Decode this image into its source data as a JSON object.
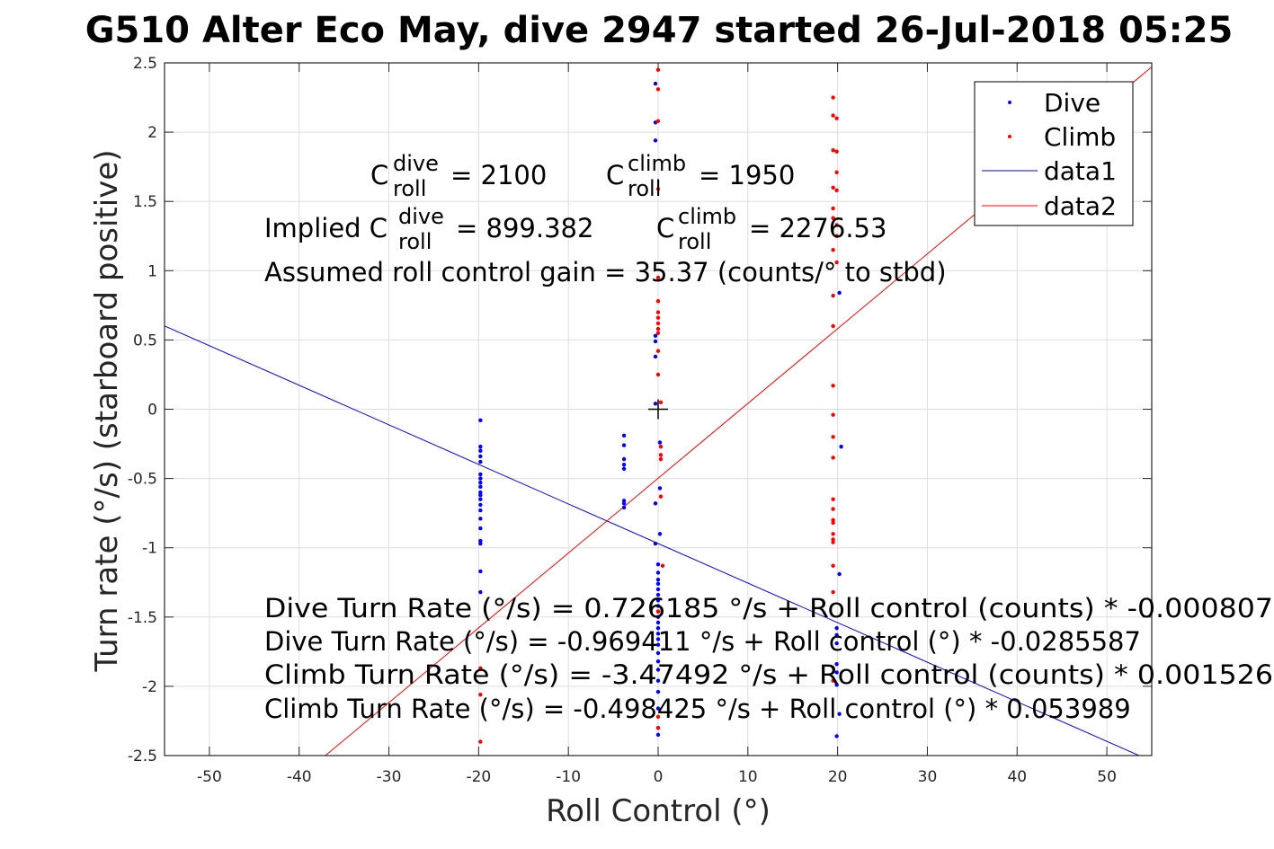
{
  "chart_data": {
    "type": "scatter",
    "title": "G510 Alter Eco May, dive 2947 started 26-Jul-2018 05:25",
    "xlabel": "Roll Control (°)",
    "ylabel": "Turn rate (°/s) (starboard positive)",
    "xlim": [
      -55,
      55
    ],
    "ylim": [
      -2.5,
      2.5
    ],
    "xticks": [
      -50,
      -40,
      -30,
      -20,
      -10,
      0,
      10,
      20,
      30,
      40,
      50
    ],
    "yticks": [
      -2.5,
      -2,
      -1.5,
      -1,
      -0.5,
      0,
      0.5,
      1,
      1.5,
      2,
      2.5
    ],
    "grid": true,
    "legend_position": "top-right",
    "series": [
      {
        "name": "Dive",
        "kind": "points",
        "color": "#0000ff",
        "points": [
          [
            -19.8,
            -0.08
          ],
          [
            -19.8,
            -0.27
          ],
          [
            -19.8,
            -0.3
          ],
          [
            -19.8,
            -0.34
          ],
          [
            -19.8,
            -0.38
          ],
          [
            -19.8,
            -0.47
          ],
          [
            -19.8,
            -0.5
          ],
          [
            -19.8,
            -0.53
          ],
          [
            -19.8,
            -0.56
          ],
          [
            -19.8,
            -0.6
          ],
          [
            -19.8,
            -0.62
          ],
          [
            -19.8,
            -0.65
          ],
          [
            -19.8,
            -0.69
          ],
          [
            -19.8,
            -0.73
          ],
          [
            -19.8,
            -0.79
          ],
          [
            -19.8,
            -0.86
          ],
          [
            -19.8,
            -0.95
          ],
          [
            -19.8,
            -0.97
          ],
          [
            -19.8,
            -1.17
          ],
          [
            -19.8,
            -1.32
          ],
          [
            -3.8,
            -0.19
          ],
          [
            -3.8,
            -0.26
          ],
          [
            -3.8,
            -0.36
          ],
          [
            -3.8,
            -0.4
          ],
          [
            -3.8,
            -0.43
          ],
          [
            -3.8,
            -0.66
          ],
          [
            -3.8,
            -0.68
          ],
          [
            -3.8,
            -0.71
          ],
          [
            -0.3,
            2.35
          ],
          [
            -0.3,
            2.07
          ],
          [
            -0.3,
            1.94
          ],
          [
            -0.3,
            0.53
          ],
          [
            -0.3,
            0.49
          ],
          [
            -0.3,
            0.38
          ],
          [
            -0.3,
            0.04
          ],
          [
            -0.3,
            -0.68
          ],
          [
            -0.3,
            -0.97
          ],
          [
            0.2,
            -0.24
          ],
          [
            0.2,
            -0.57
          ],
          [
            0.2,
            -0.9
          ],
          [
            0.0,
            -1.12
          ],
          [
            0.0,
            -1.18
          ],
          [
            0.0,
            -1.23
          ],
          [
            0.0,
            -1.26
          ],
          [
            0.0,
            -1.3
          ],
          [
            0.0,
            -1.34
          ],
          [
            0.0,
            -1.38
          ],
          [
            0.0,
            -1.42
          ],
          [
            0.0,
            -1.46
          ],
          [
            0.0,
            -1.5
          ],
          [
            0.0,
            -1.54
          ],
          [
            0.0,
            -1.58
          ],
          [
            0.0,
            -1.62
          ],
          [
            0.0,
            -1.66
          ],
          [
            0.0,
            -1.7
          ],
          [
            0.0,
            -1.76
          ],
          [
            0.0,
            -1.82
          ],
          [
            0.0,
            -1.88
          ],
          [
            0.0,
            -1.96
          ],
          [
            0.0,
            -2.04
          ],
          [
            0.0,
            -2.16
          ],
          [
            0.0,
            -2.3
          ],
          [
            0.0,
            -2.35
          ],
          [
            20.2,
            0.84
          ],
          [
            20.4,
            -0.27
          ],
          [
            20.2,
            -1.19
          ],
          [
            19.9,
            -1.58
          ],
          [
            19.9,
            -1.63
          ],
          [
            19.9,
            -1.69
          ],
          [
            19.9,
            -1.84
          ],
          [
            19.9,
            -1.9
          ],
          [
            19.9,
            -1.99
          ],
          [
            20.2,
            -2.2
          ],
          [
            19.9,
            -2.36
          ]
        ]
      },
      {
        "name": "Climb",
        "kind": "points",
        "color": "#ff0000",
        "points": [
          [
            0.0,
            2.45
          ],
          [
            0.0,
            2.31
          ],
          [
            0.0,
            2.08
          ],
          [
            0.0,
            1.59
          ],
          [
            0.0,
            0.95
          ],
          [
            0.0,
            0.78
          ],
          [
            0.0,
            0.7
          ],
          [
            0.0,
            0.66
          ],
          [
            0.0,
            0.62
          ],
          [
            0.0,
            0.58
          ],
          [
            0.0,
            0.55
          ],
          [
            0.0,
            0.42
          ],
          [
            0.0,
            0.25
          ],
          [
            0.3,
            0.05
          ],
          [
            0.3,
            -0.27
          ],
          [
            0.3,
            -0.33
          ],
          [
            0.3,
            -0.36
          ],
          [
            0.3,
            -0.63
          ],
          [
            0.5,
            -1.13
          ],
          [
            0.0,
            -1.46
          ],
          [
            0.0,
            -2.22
          ],
          [
            0.0,
            -2.3
          ],
          [
            19.5,
            2.25
          ],
          [
            19.5,
            2.12
          ],
          [
            19.9,
            2.1
          ],
          [
            19.5,
            1.87
          ],
          [
            19.9,
            1.86
          ],
          [
            19.9,
            1.71
          ],
          [
            19.5,
            1.6
          ],
          [
            19.9,
            1.58
          ],
          [
            19.5,
            1.45
          ],
          [
            19.5,
            1.38
          ],
          [
            19.9,
            1.33
          ],
          [
            19.9,
            1.25
          ],
          [
            19.5,
            1.15
          ],
          [
            19.9,
            1.06
          ],
          [
            19.5,
            0.82
          ],
          [
            19.5,
            0.6
          ],
          [
            19.5,
            0.17
          ],
          [
            19.5,
            -0.04
          ],
          [
            19.5,
            -0.2
          ],
          [
            19.5,
            -0.35
          ],
          [
            19.5,
            -0.65
          ],
          [
            19.5,
            -0.72
          ],
          [
            19.5,
            -0.8
          ],
          [
            19.5,
            -0.82
          ],
          [
            19.5,
            -0.9
          ],
          [
            19.5,
            -0.94
          ],
          [
            19.5,
            -0.96
          ],
          [
            19.5,
            -1.13
          ],
          [
            19.5,
            -1.32
          ],
          [
            19.5,
            -1.96
          ],
          [
            -19.8,
            -1.87
          ],
          [
            -19.8,
            -2.06
          ],
          [
            -19.8,
            -2.4
          ]
        ]
      },
      {
        "name": "data1",
        "kind": "line",
        "color": "#0000ff",
        "intercept": -0.969411,
        "slope": -0.0285587
      },
      {
        "name": "data2",
        "kind": "line",
        "color": "#ff0000",
        "intercept": -0.498425,
        "slope": 0.053989
      }
    ],
    "marker": {
      "x": 0,
      "y": 0,
      "symbol": "+"
    },
    "annotations": {
      "c_dive_label": "C",
      "c_dive_sup": "dive",
      "c_dive_sub": "roll",
      "c_dive_value": "= 2100",
      "c_climb_label": "C",
      "c_climb_sup": "climb",
      "c_climb_sub": "roll",
      "c_climb_value": "= 1950",
      "implied_prefix": "Implied C",
      "implied_dive_sup": "dive",
      "implied_dive_sub": "roll",
      "implied_dive_value": "= 899.382",
      "implied_climb_label": "C",
      "implied_climb_sup": "climb",
      "implied_climb_sub": "roll",
      "implied_climb_value": "= 2276.53",
      "gain": "Assumed roll control gain = 35.37 (counts/° to stbd)",
      "fit_lines": [
        "Dive Turn Rate (°/s) = 0.726185 °/s + Roll control (counts) * -0.000807",
        "Dive Turn Rate (°/s) = -0.969411 °/s + Roll control (°) * -0.0285587",
        "Climb Turn Rate (°/s) = -3.47492 °/s + Roll control (counts) * 0.001526",
        "Climb Turn Rate (°/s) = -0.498425 °/s + Roll control (°) * 0.053989"
      ]
    }
  }
}
